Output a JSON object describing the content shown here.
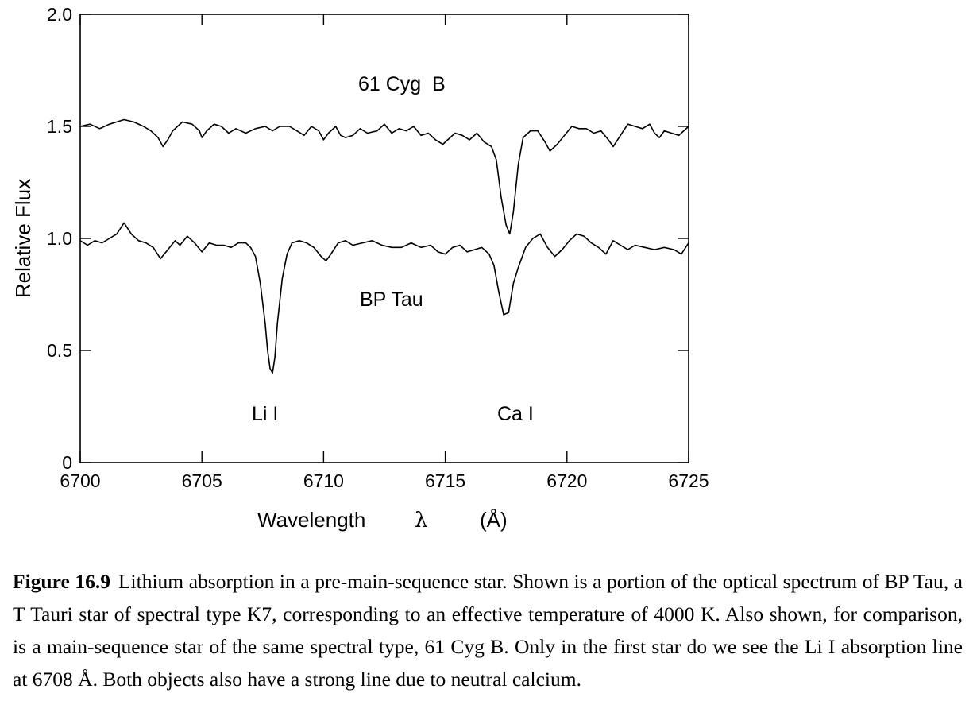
{
  "chart_data": {
    "type": "line",
    "xlabel": "Wavelength",
    "xlabel_symbol": "λ",
    "xlabel_unit": "(Å)",
    "ylabel": "Relative Flux",
    "xlim": [
      6700,
      6725
    ],
    "ylim": [
      0,
      2.0
    ],
    "x_ticks": [
      "6700",
      "6705",
      "6710",
      "6715",
      "6720",
      "6725"
    ],
    "y_ticks": [
      "0",
      "0.5",
      "1.0",
      "1.5",
      "2.0"
    ],
    "grid": false,
    "series": [
      {
        "name": "61 Cyg  B",
        "x": [
          6700.0,
          6700.4,
          6700.8,
          6701.2,
          6701.5,
          6701.8,
          6702.2,
          6702.6,
          6702.9,
          6703.2,
          6703.4,
          6703.6,
          6703.8,
          6704.2,
          6704.6,
          6704.9,
          6705.0,
          6705.2,
          6705.5,
          6705.8,
          6706.1,
          6706.4,
          6706.8,
          6707.2,
          6707.6,
          6707.9,
          6708.2,
          6708.6,
          6708.9,
          6709.2,
          6709.5,
          6709.8,
          6710.0,
          6710.2,
          6710.5,
          6710.7,
          6710.9,
          6711.2,
          6711.5,
          6711.8,
          6712.2,
          6712.5,
          6712.8,
          6713.1,
          6713.4,
          6713.7,
          6714.0,
          6714.3,
          6714.6,
          6714.9,
          6715.1,
          6715.4,
          6715.7,
          6716.0,
          6716.3,
          6716.6,
          6716.9,
          6717.1,
          6717.3,
          6717.5,
          6717.65,
          6717.8,
          6718.0,
          6718.2,
          6718.5,
          6718.8,
          6719.1,
          6719.3,
          6719.6,
          6719.9,
          6720.2,
          6720.5,
          6720.8,
          6721.1,
          6721.4,
          6721.7,
          6721.9,
          6722.2,
          6722.5,
          6722.8,
          6723.1,
          6723.4,
          6723.6,
          6723.8,
          6724.0,
          6724.3,
          6724.6,
          6725.0
        ],
        "values": [
          1.5,
          1.51,
          1.49,
          1.51,
          1.52,
          1.53,
          1.52,
          1.5,
          1.48,
          1.45,
          1.41,
          1.44,
          1.48,
          1.52,
          1.51,
          1.48,
          1.45,
          1.48,
          1.51,
          1.5,
          1.47,
          1.49,
          1.47,
          1.49,
          1.5,
          1.48,
          1.5,
          1.5,
          1.48,
          1.46,
          1.5,
          1.48,
          1.44,
          1.47,
          1.5,
          1.46,
          1.45,
          1.46,
          1.49,
          1.47,
          1.48,
          1.51,
          1.47,
          1.49,
          1.48,
          1.5,
          1.46,
          1.47,
          1.44,
          1.42,
          1.44,
          1.47,
          1.46,
          1.44,
          1.47,
          1.43,
          1.41,
          1.35,
          1.18,
          1.06,
          1.02,
          1.12,
          1.33,
          1.45,
          1.48,
          1.48,
          1.43,
          1.39,
          1.42,
          1.46,
          1.5,
          1.49,
          1.49,
          1.47,
          1.48,
          1.44,
          1.41,
          1.46,
          1.51,
          1.5,
          1.49,
          1.51,
          1.47,
          1.45,
          1.48,
          1.47,
          1.46,
          1.5
        ]
      },
      {
        "name": "BP Tau",
        "x": [
          6700.0,
          6700.3,
          6700.6,
          6700.9,
          6701.2,
          6701.5,
          6701.8,
          6702.1,
          6702.4,
          6702.7,
          6703.0,
          6703.3,
          6703.6,
          6703.9,
          6704.1,
          6704.4,
          6704.7,
          6705.0,
          6705.3,
          6705.6,
          6705.9,
          6706.2,
          6706.5,
          6706.8,
          6707.0,
          6707.2,
          6707.4,
          6707.6,
          6707.7,
          6707.8,
          6707.9,
          6708.0,
          6708.1,
          6708.3,
          6708.5,
          6708.7,
          6709.0,
          6709.3,
          6709.6,
          6709.9,
          6710.1,
          6710.3,
          6710.6,
          6710.9,
          6711.2,
          6711.6,
          6712.0,
          6712.4,
          6712.8,
          6713.2,
          6713.6,
          6714.0,
          6714.4,
          6714.7,
          6715.0,
          6715.3,
          6715.6,
          6715.9,
          6716.2,
          6716.5,
          6716.8,
          6717.0,
          6717.2,
          6717.4,
          6717.6,
          6717.8,
          6718.0,
          6718.3,
          6718.6,
          6718.9,
          6719.2,
          6719.5,
          6719.8,
          6720.1,
          6720.4,
          6720.7,
          6721.0,
          6721.3,
          6721.6,
          6721.9,
          6722.2,
          6722.5,
          6722.8,
          6723.2,
          6723.6,
          6724.0,
          6724.4,
          6724.7,
          6725.0
        ],
        "values": [
          0.99,
          0.97,
          0.99,
          0.98,
          1.0,
          1.02,
          1.07,
          1.02,
          0.99,
          0.98,
          0.96,
          0.91,
          0.95,
          0.99,
          0.97,
          1.01,
          0.98,
          0.94,
          0.98,
          0.97,
          0.97,
          0.96,
          0.98,
          0.98,
          0.96,
          0.92,
          0.8,
          0.62,
          0.5,
          0.42,
          0.4,
          0.47,
          0.62,
          0.82,
          0.93,
          0.98,
          0.99,
          0.98,
          0.96,
          0.92,
          0.9,
          0.93,
          0.98,
          0.99,
          0.97,
          0.98,
          0.99,
          0.97,
          0.96,
          0.96,
          0.98,
          0.96,
          0.97,
          0.94,
          0.93,
          0.96,
          0.97,
          0.94,
          0.95,
          0.96,
          0.93,
          0.88,
          0.76,
          0.66,
          0.67,
          0.8,
          0.87,
          0.96,
          1.0,
          1.02,
          0.96,
          0.92,
          0.95,
          0.99,
          1.02,
          1.01,
          0.98,
          0.96,
          0.93,
          0.99,
          0.97,
          0.95,
          0.97,
          0.96,
          0.95,
          0.96,
          0.95,
          0.93,
          0.98
        ]
      }
    ],
    "annotations": [
      "Li I",
      "Ca I"
    ]
  },
  "caption": {
    "label": "Figure 16.9",
    "text": "Lithium absorption in a pre-main-sequence star. Shown is a portion of the optical spectrum of BP Tau, a T Tauri star of spectral type K7, corresponding to an effective temperature of 4000 K. Also shown, for comparison, is a main-sequence star of the same spectral type, 61 Cyg B. Only in the first star do we see the Li I absorption line at 6708 Å. Both objects also have a strong line due to neutral calcium."
  }
}
